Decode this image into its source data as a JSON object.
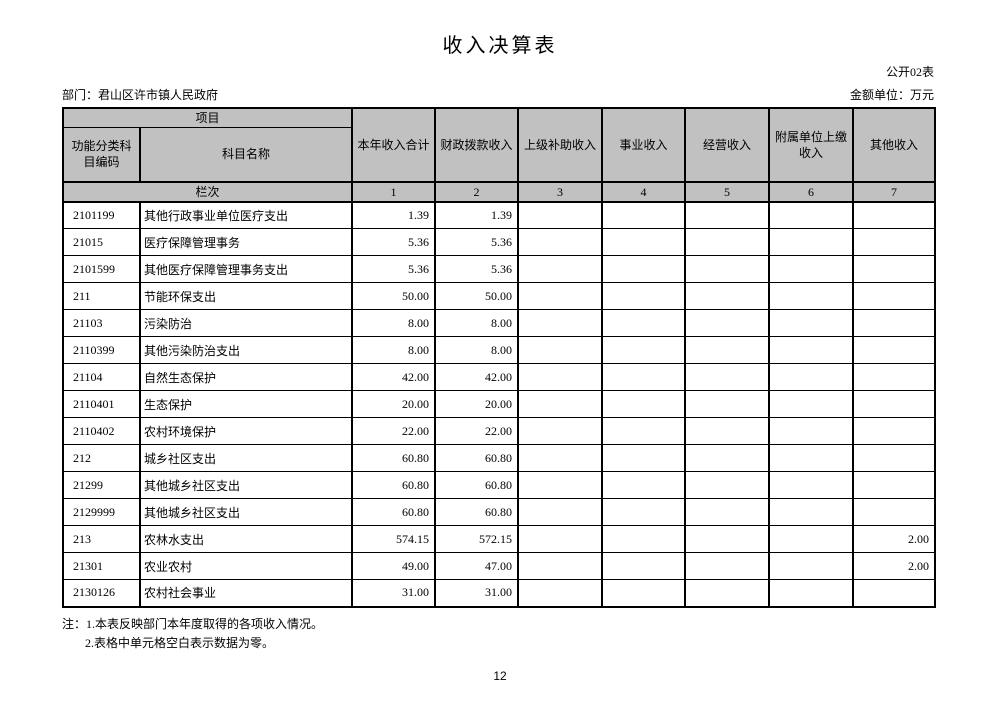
{
  "page": {
    "title": "收入决算表",
    "table_code": "公开02表",
    "department_line": "部门：君山区许市镇人民政府",
    "unit_line": "金额单位：万元",
    "page_number": "12",
    "notes": [
      "注：1.本表反映部门本年度取得的各项收入情况。",
      "2.表格中单元格空白表示数据为零。"
    ]
  },
  "colors": {
    "header_bg": "#c1c1c1",
    "border": "#000000",
    "page_bg": "#ffffff"
  },
  "table": {
    "header": {
      "project_label": "项目",
      "code_label": "功能分类科目编码",
      "name_label": "科目名称",
      "rank_label": "栏次",
      "columns": [
        "本年收入合计",
        "财政拨款收入",
        "上级补助收入",
        "事业收入",
        "经营收入",
        "附属单位上缴收入",
        "其他收入"
      ],
      "column_numbers": [
        "1",
        "2",
        "3",
        "4",
        "5",
        "6",
        "7"
      ]
    },
    "rows": [
      {
        "code": "2101199",
        "name": "其他行政事业单位医疗支出",
        "values": [
          "1.39",
          "1.39",
          "",
          "",
          "",
          "",
          ""
        ]
      },
      {
        "code": "21015",
        "name": "医疗保障管理事务",
        "values": [
          "5.36",
          "5.36",
          "",
          "",
          "",
          "",
          ""
        ]
      },
      {
        "code": "2101599",
        "name": "其他医疗保障管理事务支出",
        "values": [
          "5.36",
          "5.36",
          "",
          "",
          "",
          "",
          ""
        ]
      },
      {
        "code": "211",
        "name": "节能环保支出",
        "values": [
          "50.00",
          "50.00",
          "",
          "",
          "",
          "",
          ""
        ]
      },
      {
        "code": "21103",
        "name": "污染防治",
        "values": [
          "8.00",
          "8.00",
          "",
          "",
          "",
          "",
          ""
        ]
      },
      {
        "code": "2110399",
        "name": "其他污染防治支出",
        "values": [
          "8.00",
          "8.00",
          "",
          "",
          "",
          "",
          ""
        ]
      },
      {
        "code": "21104",
        "name": "自然生态保护",
        "values": [
          "42.00",
          "42.00",
          "",
          "",
          "",
          "",
          ""
        ]
      },
      {
        "code": "2110401",
        "name": "生态保护",
        "values": [
          "20.00",
          "20.00",
          "",
          "",
          "",
          "",
          ""
        ]
      },
      {
        "code": "2110402",
        "name": "农村环境保护",
        "values": [
          "22.00",
          "22.00",
          "",
          "",
          "",
          "",
          ""
        ]
      },
      {
        "code": "212",
        "name": "城乡社区支出",
        "values": [
          "60.80",
          "60.80",
          "",
          "",
          "",
          "",
          ""
        ]
      },
      {
        "code": "21299",
        "name": "其他城乡社区支出",
        "values": [
          "60.80",
          "60.80",
          "",
          "",
          "",
          "",
          ""
        ]
      },
      {
        "code": "2129999",
        "name": "其他城乡社区支出",
        "values": [
          "60.80",
          "60.80",
          "",
          "",
          "",
          "",
          ""
        ]
      },
      {
        "code": "213",
        "name": "农林水支出",
        "values": [
          "574.15",
          "572.15",
          "",
          "",
          "",
          "",
          "2.00"
        ]
      },
      {
        "code": "21301",
        "name": "农业农村",
        "values": [
          "49.00",
          "47.00",
          "",
          "",
          "",
          "",
          "2.00"
        ]
      },
      {
        "code": "2130126",
        "name": "农村社会事业",
        "values": [
          "31.00",
          "31.00",
          "",
          "",
          "",
          "",
          ""
        ]
      }
    ]
  }
}
